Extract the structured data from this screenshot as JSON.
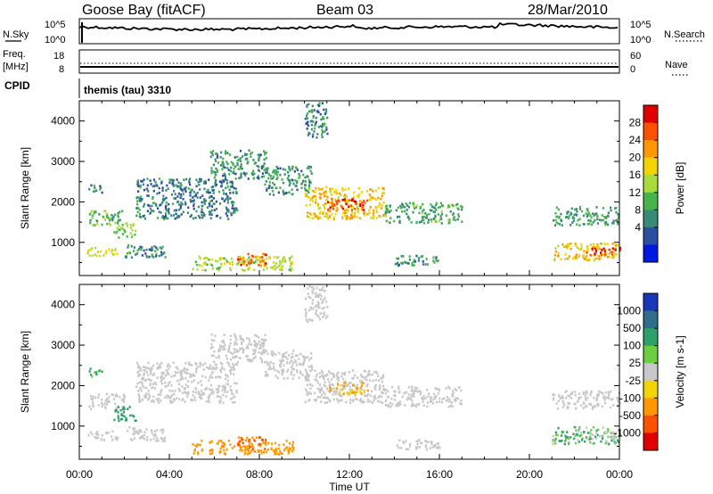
{
  "header": {
    "station": "Goose Bay (fitACF)",
    "beam": "Beam 03",
    "date": "28/Mar/2010"
  },
  "status_panels": {
    "noise": {
      "left_label": "N.Sky",
      "left_ticks": [
        "10^5",
        "10^0"
      ],
      "right_label": "N.Search",
      "right_ticks": [
        "10^5",
        "10^0"
      ]
    },
    "freq": {
      "left_label_1": "Freq.",
      "left_label_2": "[MHz]",
      "left_ticks": [
        "18",
        "8"
      ],
      "right_label": "Nave",
      "right_ticks": [
        "60",
        "0"
      ]
    },
    "cpid": {
      "label": "CPID",
      "value": "themis (tau) 3310"
    }
  },
  "colorbars": {
    "power": {
      "title": "Power [dB]",
      "ticks": [
        "28",
        "24",
        "20",
        "16",
        "12",
        "8",
        "4"
      ],
      "colors": [
        "#e00000",
        "#ff5000",
        "#ff9800",
        "#f2d400",
        "#a8dc3c",
        "#46b44a",
        "#3a8a78",
        "#2a4ea0",
        "#0018e0"
      ]
    },
    "velocity": {
      "title": "Velocity [m s-1]",
      "ticks": [
        "1000",
        "500",
        "100",
        "25",
        "-25",
        "-100",
        "-500",
        "-1000"
      ],
      "colors": [
        "#1838b8",
        "#2e6e8c",
        "#2ea06a",
        "#6ad040",
        "#c8c8c8",
        "#f2d400",
        "#ff9800",
        "#ff5000",
        "#e00000"
      ]
    }
  },
  "chart_data": [
    {
      "type": "heatmap",
      "name": "power",
      "xlabel": "Time UT",
      "ylabel": "Slant Range [km]",
      "xlim": [
        0,
        24
      ],
      "ylim": [
        180,
        4500
      ],
      "x_ticks": [
        "00:00",
        "04:00",
        "08:00",
        "12:00",
        "16:00",
        "20:00",
        "00:00"
      ],
      "y_ticks": [
        1000,
        2000,
        3000,
        4000
      ],
      "regions": [
        {
          "t": [
            0.3,
            1.7
          ],
          "r": [
            680,
            900
          ],
          "value_db": 16
        },
        {
          "t": [
            0.4,
            2.0
          ],
          "r": [
            1450,
            1820
          ],
          "value_db": 10
        },
        {
          "t": [
            0.3,
            1.0
          ],
          "r": [
            2250,
            2450
          ],
          "value_db": 6
        },
        {
          "t": [
            1.5,
            2.5
          ],
          "r": [
            1130,
            1500
          ],
          "value_db": 12
        },
        {
          "t": [
            2.0,
            3.8
          ],
          "r": [
            650,
            1000
          ],
          "value_db": 6
        },
        {
          "t": [
            2.5,
            7.0
          ],
          "r": [
            1600,
            2600
          ],
          "value_db": 5
        },
        {
          "t": [
            5.8,
            8.3
          ],
          "r": [
            2600,
            3300
          ],
          "value_db": 7
        },
        {
          "t": [
            5.0,
            9.5
          ],
          "r": [
            330,
            680
          ],
          "value_db": 14
        },
        {
          "t": [
            7.0,
            8.3
          ],
          "r": [
            450,
            750
          ],
          "value_db": 25
        },
        {
          "t": [
            8.2,
            10.3
          ],
          "r": [
            2200,
            2900
          ],
          "value_db": 7
        },
        {
          "t": [
            10.0,
            13.5
          ],
          "r": [
            1600,
            2400
          ],
          "value_db": 19
        },
        {
          "t": [
            11.0,
            12.8
          ],
          "r": [
            1800,
            2100
          ],
          "value_db": 27
        },
        {
          "t": [
            13.5,
            17.0
          ],
          "r": [
            1500,
            2000
          ],
          "value_db": 9
        },
        {
          "t": [
            10.0,
            11.0
          ],
          "r": [
            3600,
            4500
          ],
          "value_db": 6
        },
        {
          "t": [
            14.0,
            16.0
          ],
          "r": [
            450,
            700
          ],
          "value_db": 7
        },
        {
          "t": [
            21.0,
            24.0
          ],
          "r": [
            1450,
            1900
          ],
          "value_db": 8
        },
        {
          "t": [
            21.0,
            24.0
          ],
          "r": [
            580,
            1000
          ],
          "value_db": 19
        },
        {
          "t": [
            22.5,
            24.0
          ],
          "r": [
            700,
            900
          ],
          "value_db": 27
        }
      ]
    },
    {
      "type": "heatmap",
      "name": "velocity",
      "xlabel": "Time UT",
      "ylabel": "Slant Range [km]",
      "xlim": [
        0,
        24
      ],
      "ylim": [
        180,
        4500
      ],
      "x_ticks": [
        "00:00",
        "04:00",
        "08:00",
        "12:00",
        "16:00",
        "20:00",
        "00:00"
      ],
      "y_ticks": [
        1000,
        2000,
        3000,
        4000
      ],
      "regions": [
        {
          "t": [
            0.3,
            1.7
          ],
          "r": [
            680,
            900
          ],
          "value_ms": 0
        },
        {
          "t": [
            0.4,
            2.0
          ],
          "r": [
            1450,
            1820
          ],
          "value_ms": 0
        },
        {
          "t": [
            0.3,
            1.0
          ],
          "r": [
            2250,
            2450
          ],
          "value_ms": 60
        },
        {
          "t": [
            1.5,
            2.5
          ],
          "r": [
            1130,
            1500
          ],
          "value_ms": 150
        },
        {
          "t": [
            2.0,
            3.8
          ],
          "r": [
            650,
            1000
          ],
          "value_ms": 0
        },
        {
          "t": [
            2.5,
            7.0
          ],
          "r": [
            1600,
            2600
          ],
          "value_ms": 0
        },
        {
          "t": [
            5.8,
            8.3
          ],
          "r": [
            2600,
            3300
          ],
          "value_ms": 0
        },
        {
          "t": [
            5.0,
            9.5
          ],
          "r": [
            330,
            680
          ],
          "value_ms": -150
        },
        {
          "t": [
            7.0,
            8.3
          ],
          "r": [
            450,
            750
          ],
          "value_ms": -300
        },
        {
          "t": [
            8.2,
            10.3
          ],
          "r": [
            2200,
            2900
          ],
          "value_ms": 0
        },
        {
          "t": [
            10.0,
            13.5
          ],
          "r": [
            1600,
            2400
          ],
          "value_ms": 0
        },
        {
          "t": [
            11.0,
            12.8
          ],
          "r": [
            1800,
            2100
          ],
          "value_ms": -60
        },
        {
          "t": [
            13.5,
            17.0
          ],
          "r": [
            1500,
            2000
          ],
          "value_ms": 0
        },
        {
          "t": [
            10.0,
            11.0
          ],
          "r": [
            3600,
            4500
          ],
          "value_ms": 0
        },
        {
          "t": [
            14.0,
            16.0
          ],
          "r": [
            450,
            700
          ],
          "value_ms": 0
        },
        {
          "t": [
            21.0,
            24.0
          ],
          "r": [
            1450,
            1900
          ],
          "value_ms": 0
        },
        {
          "t": [
            21.0,
            24.0
          ],
          "r": [
            580,
            1000
          ],
          "value_ms": 60
        },
        {
          "t": [
            22.5,
            24.0
          ],
          "r": [
            700,
            900
          ],
          "value_ms": 0
        }
      ]
    }
  ]
}
